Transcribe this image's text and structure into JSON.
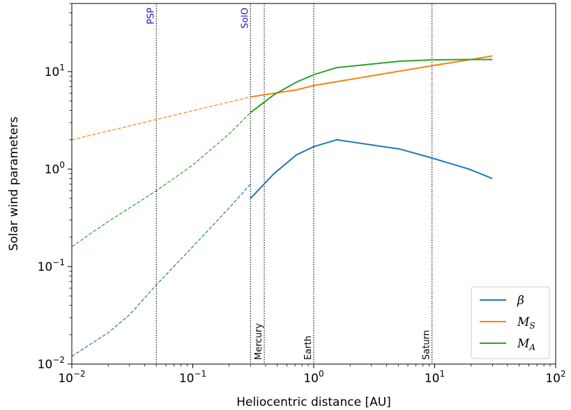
{
  "chart_data": {
    "type": "line",
    "xlabel": "Heliocentric distance [AU]",
    "ylabel": "Solar wind parameters",
    "xscale": "log",
    "yscale": "log",
    "xlim": [
      0.01,
      100
    ],
    "ylim": [
      0.01,
      50
    ],
    "x_ticks": [
      {
        "value": 0.01,
        "base": "10",
        "exp": "−2"
      },
      {
        "value": 0.1,
        "base": "10",
        "exp": "−1"
      },
      {
        "value": 1,
        "base": "10",
        "exp": "0"
      },
      {
        "value": 10,
        "base": "10",
        "exp": "1"
      },
      {
        "value": 100,
        "base": "10",
        "exp": "2"
      }
    ],
    "y_ticks": [
      {
        "value": 0.01,
        "base": "10",
        "exp": "−2"
      },
      {
        "value": 0.1,
        "base": "10",
        "exp": "−1"
      },
      {
        "value": 1,
        "base": "10",
        "exp": "0"
      },
      {
        "value": 10,
        "base": "10",
        "exp": "1"
      }
    ],
    "vertical_lines": [
      {
        "x": 0.05,
        "label": "PSP",
        "label_position": "top",
        "color": "#1515d6"
      },
      {
        "x": 0.3,
        "label": "SolO",
        "label_position": "top",
        "color": "#1515d6"
      },
      {
        "x": 0.39,
        "label": "Mercury",
        "label_position": "bottom",
        "color": "#000000"
      },
      {
        "x": 1.0,
        "label": "Earth",
        "label_position": "bottom",
        "color": "#000000"
      },
      {
        "x": 9.5,
        "label": "Saturn",
        "label_position": "bottom",
        "color": "#000000"
      }
    ],
    "legend_position": "bottom-right",
    "series": [
      {
        "name": "β",
        "subscript": "",
        "color": "#1f77b4",
        "solid": {
          "x": [
            0.3,
            0.47,
            0.72,
            1.0,
            1.55,
            5.2,
            9.5,
            19.2,
            30
          ],
          "y": [
            0.5,
            0.9,
            1.4,
            1.7,
            2.0,
            1.6,
            1.3,
            1.0,
            0.8
          ]
        },
        "dashed": {
          "x": [
            0.01,
            0.02,
            0.03,
            0.05,
            0.1,
            0.2,
            0.3
          ],
          "y": [
            0.012,
            0.021,
            0.032,
            0.065,
            0.16,
            0.4,
            0.7
          ]
        }
      },
      {
        "name": "M",
        "subscript": "S",
        "color": "#ff7f0e",
        "solid": {
          "x": [
            0.3,
            0.72,
            1.0,
            9.5,
            19.2,
            30
          ],
          "y": [
            5.5,
            6.5,
            7.2,
            11.5,
            13.2,
            14.5
          ]
        },
        "dashed": {
          "x": [
            0.01,
            0.3
          ],
          "y": [
            2.0,
            5.5
          ]
        }
      },
      {
        "name": "M",
        "subscript": "A",
        "color": "#2ca02c",
        "solid": {
          "x": [
            0.3,
            0.47,
            0.72,
            1.0,
            1.55,
            5.2,
            9.5,
            19.2,
            30
          ],
          "y": [
            3.8,
            5.8,
            7.8,
            9.3,
            11.0,
            12.8,
            13.2,
            13.3,
            13.3
          ]
        },
        "dashed": {
          "x": [
            0.01,
            0.02,
            0.05,
            0.1,
            0.2,
            0.3
          ],
          "y": [
            0.16,
            0.29,
            0.6,
            1.1,
            2.3,
            3.8
          ]
        }
      }
    ]
  }
}
